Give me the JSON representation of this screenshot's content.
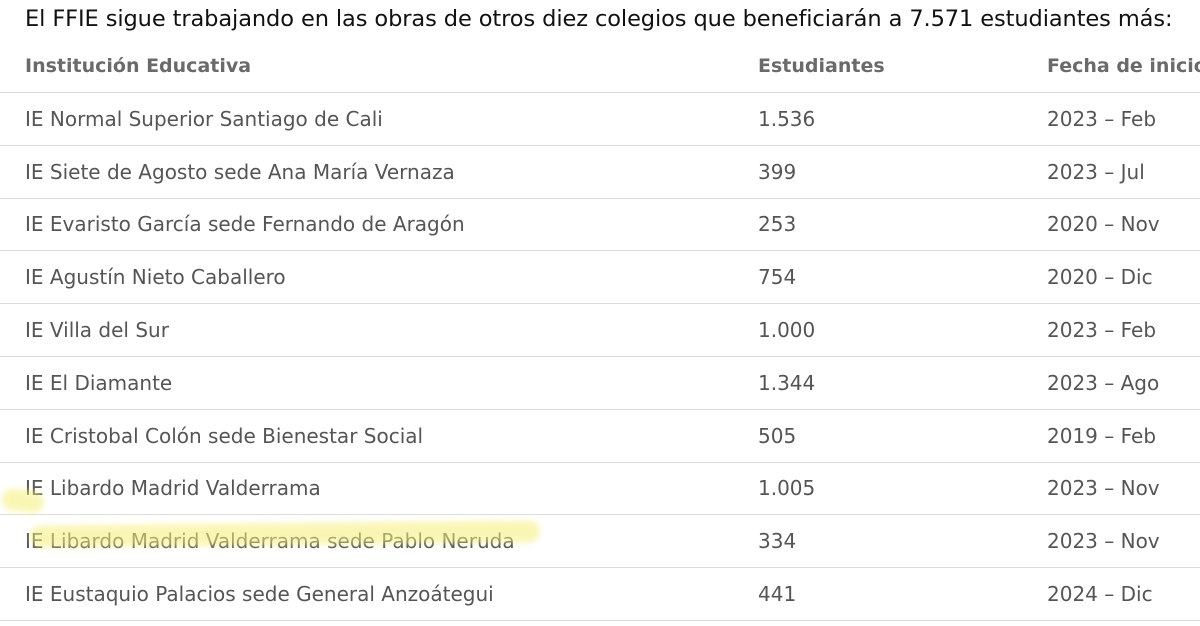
{
  "intro_text": "El FFIE sigue trabajando en las obras de otros diez colegios que beneficiarán a 7.571 estudiantes más:",
  "table": {
    "headers": {
      "institution": "Institución Educativa",
      "students": "Estudiantes",
      "start_date": "Fecha de inicio"
    },
    "rows": [
      {
        "institution": "IE Normal Superior Santiago de Cali",
        "students": "1.536",
        "start_date": "2023 – Feb"
      },
      {
        "institution": "IE Siete de Agosto sede Ana María Vernaza",
        "students": "399",
        "start_date": "2023 – Jul"
      },
      {
        "institution": "IE Evaristo García sede Fernando de Aragón",
        "students": "253",
        "start_date": "2020 – Nov"
      },
      {
        "institution": "IE Agustín Nieto Caballero",
        "students": "754",
        "start_date": "2020 – Dic"
      },
      {
        "institution": "IE Villa del Sur",
        "students": "1.000",
        "start_date": "2023 – Feb"
      },
      {
        "institution": "IE El Diamante",
        "students": "1.344",
        "start_date": "2023 – Ago"
      },
      {
        "institution": "IE Cristobal Colón sede Bienestar Social",
        "students": "505",
        "start_date": "2019 – Feb"
      },
      {
        "institution": "IE Libardo Madrid Valderrama",
        "students": "1.005",
        "start_date": "2023 – Nov"
      },
      {
        "institution": "IE Libardo Madrid Valderrama sede Pablo Neruda",
        "students": "334",
        "start_date": "2023 – Nov"
      },
      {
        "institution": "IE Eustaquio Palacios sede General Anzoátegui",
        "students": "441",
        "start_date": "2024 – Dic"
      }
    ]
  },
  "highlight_color": "#f5f07a"
}
